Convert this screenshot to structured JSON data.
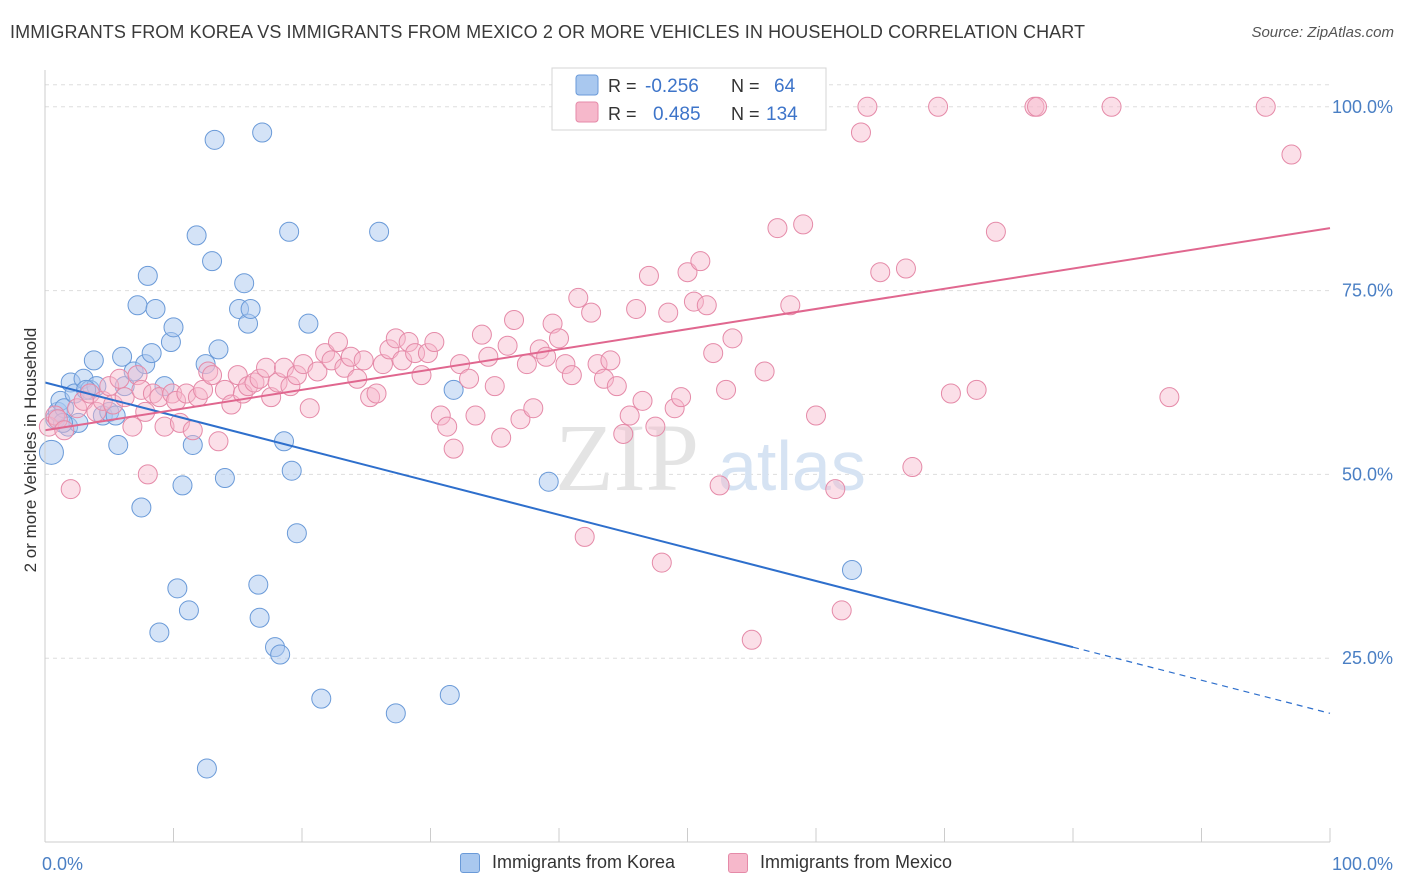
{
  "header": {
    "title": "IMMIGRANTS FROM KOREA VS IMMIGRANTS FROM MEXICO 2 OR MORE VEHICLES IN HOUSEHOLD CORRELATION CHART",
    "source": "Source: ZipAtlas.com"
  },
  "watermark": {
    "zip": "ZIP",
    "atlas": "atlas"
  },
  "colors": {
    "korea_fill": "#a9c8ef",
    "korea_stroke": "#6a9ad8",
    "korea_line": "#2e6fcc",
    "mexico_fill": "#f6b8cb",
    "mexico_stroke": "#e58aa8",
    "mexico_line": "#e0678f",
    "axis_value": "#4a7fc4",
    "grid": "#dddddd"
  },
  "legend_box": {
    "rows": [
      {
        "r_label": "R =",
        "r_value": "-0.256",
        "n_label": "N =",
        "n_value": "64"
      },
      {
        "r_label": "R =",
        "r_value": "0.485",
        "n_label": "N =",
        "n_value": "134"
      }
    ]
  },
  "chart_data": {
    "type": "scatter",
    "ylabel": "2 or more Vehicles in Household",
    "xlim": [
      0,
      100
    ],
    "ylim": [
      0,
      105
    ],
    "x_tick_labels": [
      "0.0%",
      "100.0%"
    ],
    "y_tick_labels": [
      "25.0%",
      "50.0%",
      "75.0%",
      "100.0%"
    ],
    "y_ticks": [
      25,
      50,
      75,
      100
    ],
    "grid": true,
    "legend_position": "bottom",
    "series": [
      {
        "name": "Immigrants from Korea",
        "r": -0.256,
        "n": 64,
        "trend": {
          "x0": 0,
          "y0": 62.5,
          "x1": 80,
          "y1": 26.5,
          "dash_to_x": 100,
          "dash_to_y": 17.5
        },
        "points": [
          [
            0.5,
            53.0
          ],
          [
            0.8,
            57.5
          ],
          [
            1.0,
            58.5
          ],
          [
            1.2,
            60.0
          ],
          [
            1.5,
            59.0
          ],
          [
            1.8,
            56.5
          ],
          [
            2.0,
            62.5
          ],
          [
            2.3,
            61.0
          ],
          [
            2.6,
            57.0
          ],
          [
            3.0,
            63.0
          ],
          [
            3.5,
            61.5
          ],
          [
            3.8,
            65.5
          ],
          [
            4.0,
            62.0
          ],
          [
            4.5,
            58.0
          ],
          [
            5.0,
            58.5
          ],
          [
            5.7,
            54.0
          ],
          [
            6.0,
            66.0
          ],
          [
            6.2,
            62.0
          ],
          [
            6.9,
            64.0
          ],
          [
            7.2,
            73.0
          ],
          [
            7.5,
            45.5
          ],
          [
            7.8,
            65.0
          ],
          [
            8.0,
            77.0
          ],
          [
            8.3,
            66.5
          ],
          [
            8.6,
            72.5
          ],
          [
            8.9,
            28.5
          ],
          [
            9.3,
            62.0
          ],
          [
            9.8,
            68.0
          ],
          [
            10.0,
            70.0
          ],
          [
            10.3,
            34.5
          ],
          [
            10.7,
            48.5
          ],
          [
            11.2,
            31.5
          ],
          [
            11.5,
            54.0
          ],
          [
            11.8,
            82.5
          ],
          [
            12.6,
            10.0
          ],
          [
            13.0,
            79.0
          ],
          [
            13.2,
            95.5
          ],
          [
            13.5,
            67.0
          ],
          [
            14.0,
            49.5
          ],
          [
            15.1,
            72.5
          ],
          [
            15.5,
            76.0
          ],
          [
            15.8,
            70.5
          ],
          [
            16.6,
            35.0
          ],
          [
            16.7,
            30.5
          ],
          [
            16.9,
            96.5
          ],
          [
            17.9,
            26.5
          ],
          [
            18.3,
            25.5
          ],
          [
            18.6,
            54.5
          ],
          [
            19.0,
            83.0
          ],
          [
            19.2,
            50.5
          ],
          [
            19.6,
            42.0
          ],
          [
            20.5,
            70.5
          ],
          [
            21.5,
            19.5
          ],
          [
            26.0,
            83.0
          ],
          [
            27.3,
            17.5
          ],
          [
            31.5,
            20.0
          ],
          [
            31.8,
            61.5
          ],
          [
            39.2,
            49.0
          ],
          [
            62.8,
            37.0
          ],
          [
            16.0,
            72.5
          ],
          [
            12.5,
            65.0
          ],
          [
            5.5,
            58.0
          ],
          [
            3.2,
            61.5
          ],
          [
            1.4,
            57.0
          ]
        ]
      },
      {
        "name": "Immigrants from Mexico",
        "r": 0.485,
        "n": 134,
        "trend": {
          "x0": 0,
          "y0": 56.0,
          "x1": 100,
          "y1": 83.5
        },
        "points": [
          [
            0.3,
            56.5
          ],
          [
            0.8,
            58.0
          ],
          [
            1.0,
            57.5
          ],
          [
            1.5,
            56.0
          ],
          [
            2.0,
            48.0
          ],
          [
            2.5,
            59.0
          ],
          [
            3.0,
            60.0
          ],
          [
            3.5,
            61.0
          ],
          [
            4.0,
            58.5
          ],
          [
            4.5,
            60.0
          ],
          [
            5.0,
            62.0
          ],
          [
            5.3,
            59.5
          ],
          [
            5.8,
            63.0
          ],
          [
            6.2,
            60.5
          ],
          [
            6.8,
            56.5
          ],
          [
            7.2,
            63.5
          ],
          [
            7.5,
            61.5
          ],
          [
            7.8,
            58.5
          ],
          [
            8.0,
            50.0
          ],
          [
            8.4,
            61.0
          ],
          [
            8.9,
            60.5
          ],
          [
            9.3,
            56.5
          ],
          [
            9.9,
            61.0
          ],
          [
            10.2,
            60.0
          ],
          [
            10.5,
            57.0
          ],
          [
            11.0,
            61.0
          ],
          [
            11.5,
            56.0
          ],
          [
            11.9,
            60.5
          ],
          [
            12.3,
            61.5
          ],
          [
            12.7,
            64.0
          ],
          [
            13.0,
            63.5
          ],
          [
            13.5,
            54.5
          ],
          [
            14.0,
            61.5
          ],
          [
            14.5,
            59.5
          ],
          [
            15.0,
            63.5
          ],
          [
            15.4,
            61.0
          ],
          [
            15.8,
            62.0
          ],
          [
            16.3,
            62.5
          ],
          [
            16.7,
            63.0
          ],
          [
            17.2,
            64.5
          ],
          [
            17.6,
            60.5
          ],
          [
            18.1,
            62.5
          ],
          [
            18.6,
            64.5
          ],
          [
            19.1,
            62.0
          ],
          [
            19.6,
            63.5
          ],
          [
            20.1,
            65.0
          ],
          [
            20.6,
            59.0
          ],
          [
            21.2,
            64.0
          ],
          [
            21.8,
            66.5
          ],
          [
            22.3,
            65.5
          ],
          [
            22.8,
            68.0
          ],
          [
            23.3,
            64.5
          ],
          [
            23.8,
            66.0
          ],
          [
            24.3,
            63.0
          ],
          [
            24.8,
            65.5
          ],
          [
            25.3,
            60.5
          ],
          [
            25.8,
            61.0
          ],
          [
            26.3,
            65.0
          ],
          [
            26.8,
            67.0
          ],
          [
            27.3,
            68.5
          ],
          [
            27.8,
            65.5
          ],
          [
            28.3,
            68.0
          ],
          [
            28.8,
            66.5
          ],
          [
            29.3,
            63.5
          ],
          [
            29.8,
            66.5
          ],
          [
            30.3,
            68.0
          ],
          [
            30.8,
            58.0
          ],
          [
            31.3,
            56.5
          ],
          [
            31.8,
            53.5
          ],
          [
            32.3,
            65.0
          ],
          [
            33.0,
            63.0
          ],
          [
            33.5,
            58.0
          ],
          [
            34.0,
            69.0
          ],
          [
            34.5,
            66.0
          ],
          [
            35.0,
            62.0
          ],
          [
            35.5,
            55.0
          ],
          [
            36.0,
            67.5
          ],
          [
            36.5,
            71.0
          ],
          [
            37.0,
            57.5
          ],
          [
            37.5,
            65.0
          ],
          [
            38.0,
            59.0
          ],
          [
            38.5,
            67.0
          ],
          [
            39.0,
            66.0
          ],
          [
            39.5,
            70.5
          ],
          [
            40.0,
            68.5
          ],
          [
            40.5,
            65.0
          ],
          [
            41.0,
            63.5
          ],
          [
            41.5,
            74.0
          ],
          [
            42.0,
            41.5
          ],
          [
            42.5,
            72.0
          ],
          [
            43.0,
            65.0
          ],
          [
            43.5,
            63.0
          ],
          [
            44.0,
            65.5
          ],
          [
            44.5,
            62.0
          ],
          [
            45.0,
            55.5
          ],
          [
            45.5,
            58.0
          ],
          [
            46.0,
            72.5
          ],
          [
            46.5,
            60.0
          ],
          [
            47.0,
            77.0
          ],
          [
            47.5,
            56.5
          ],
          [
            48.0,
            38.0
          ],
          [
            48.5,
            72.0
          ],
          [
            49.0,
            59.0
          ],
          [
            49.5,
            60.5
          ],
          [
            50.0,
            77.5
          ],
          [
            50.5,
            73.5
          ],
          [
            51.0,
            79.0
          ],
          [
            51.5,
            73.0
          ],
          [
            52.0,
            66.5
          ],
          [
            52.5,
            48.5
          ],
          [
            53.0,
            61.5
          ],
          [
            53.5,
            68.5
          ],
          [
            54.0,
            100.0
          ],
          [
            55.0,
            27.5
          ],
          [
            56.0,
            64.0
          ],
          [
            57.0,
            83.5
          ],
          [
            58.0,
            73.0
          ],
          [
            59.0,
            84.0
          ],
          [
            60.0,
            58.0
          ],
          [
            61.5,
            48.0
          ],
          [
            62.0,
            31.5
          ],
          [
            63.5,
            96.5
          ],
          [
            64.0,
            100.0
          ],
          [
            65.0,
            77.5
          ],
          [
            67.0,
            78.0
          ],
          [
            67.5,
            51.0
          ],
          [
            69.5,
            100.0
          ],
          [
            70.5,
            61.0
          ],
          [
            72.5,
            61.5
          ],
          [
            74.0,
            83.0
          ],
          [
            77.0,
            100.0
          ],
          [
            77.2,
            100.0
          ],
          [
            83.0,
            100.0
          ],
          [
            87.5,
            60.5
          ],
          [
            95.0,
            100.0
          ],
          [
            97.0,
            93.5
          ]
        ]
      }
    ]
  },
  "bottom_legend": {
    "items": [
      "Immigrants from Korea",
      "Immigrants from Mexico"
    ]
  }
}
